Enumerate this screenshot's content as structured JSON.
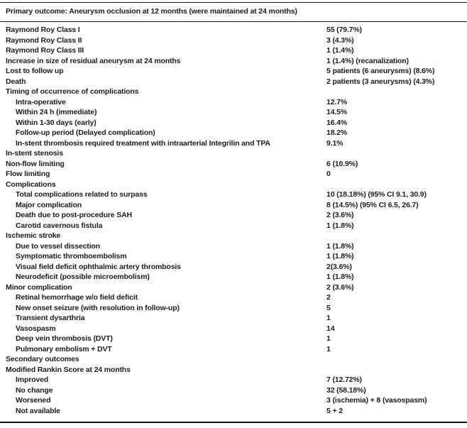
{
  "colors": {
    "text": "#1d1c1c",
    "rule": "#141414",
    "background": "#ffffff"
  },
  "table": {
    "header": "Primary outcome: Aneurysm occlusion at 12 months (were maintained at 24 months)",
    "rows": [
      {
        "label": "Raymond Roy Class I",
        "value": "55 (79.7%)",
        "indent": false
      },
      {
        "label": "Raymond Roy Class II",
        "value": "3 (4.3%)",
        "indent": false
      },
      {
        "label": "Raymond Roy Class III",
        "value": "1 (1.4%)",
        "indent": false
      },
      {
        "label": "Increase in size of residual aneurysm at 24 months",
        "value": "1 (1.4%) (recanalization)",
        "indent": false
      },
      {
        "label": "Lost to follow up",
        "value": "5 patients (6 aneurysms) (8.6%)",
        "indent": false
      },
      {
        "label": "Death",
        "value": "2 patients (3 aneurysms) (4.3%)",
        "indent": false
      },
      {
        "label": "Timing of occurrence of complications",
        "value": "",
        "indent": false
      },
      {
        "label": "Intra-operative",
        "value": "12.7%",
        "indent": true
      },
      {
        "label": "Within 24 h (immediate)",
        "value": "14.5%",
        "indent": true
      },
      {
        "label": "Within 1-30 days (early)",
        "value": "16.4%",
        "indent": true
      },
      {
        "label": "Follow-up period (Delayed complication)",
        "value": "18.2%",
        "indent": true
      },
      {
        "label": "In-stent thrombosis required treatment with intraarterial Integrilin and TPA",
        "value": "9.1%",
        "indent": true
      },
      {
        "label": "In-stent stenosis",
        "value": "",
        "indent": false
      },
      {
        "label": "Non-flow limiting",
        "value": "6 (10.9%)",
        "indent": false
      },
      {
        "label": "Flow limiting",
        "value": "0",
        "indent": false
      },
      {
        "label": "Complications",
        "value": "",
        "indent": false
      },
      {
        "label": "Total complications related to surpass",
        "value": "10 (18.18%) (95% CI 9.1, 30.9)",
        "indent": true
      },
      {
        "label": "Major complication",
        "value": "8 (14.5%) (95% CI 6.5, 26.7)",
        "indent": true
      },
      {
        "label": "Death due to post-procedure SAH",
        "value": "2 (3.6%)",
        "indent": true
      },
      {
        "label": "Carotid cavernous fistula",
        "value": "1 (1.8%)",
        "indent": true
      },
      {
        "label": "Ischemic stroke",
        "value": "",
        "indent": false
      },
      {
        "label": "Due to vessel dissection",
        "value": "1 (1.8%)",
        "indent": true
      },
      {
        "label": "Symptomatic thromboembolism",
        "value": "1 (1.8%)",
        "indent": true
      },
      {
        "label": "Visual field deficit ophthalmic artery thrombosis",
        "value": "2(3.6%)",
        "indent": true
      },
      {
        "label": "Neurodeficit (possible microembolism)",
        "value": "1 (1.8%)",
        "indent": true
      },
      {
        "label": "Minor complication",
        "value": "2 (3.6%)",
        "indent": false
      },
      {
        "label": "Retinal hemorrhage w/o field deficit",
        "value": "2",
        "indent": true
      },
      {
        "label": "New onset seizure (with resolution in follow-up)",
        "value": "5",
        "indent": true
      },
      {
        "label": "Transient dysarthria",
        "value": "1",
        "indent": true
      },
      {
        "label": "Vasospasm",
        "value": "14",
        "indent": true
      },
      {
        "label": "Deep vein thrombosis (DVT)",
        "value": "1",
        "indent": true
      },
      {
        "label": "Pulmonary embolism + DVT",
        "value": "1",
        "indent": true
      },
      {
        "label": "Secondary outcomes",
        "value": "",
        "indent": false
      },
      {
        "label": "Modified Rankin Score at 24 months",
        "value": "",
        "indent": false
      },
      {
        "label": "Improved",
        "value": "7 (12.72%)",
        "indent": true
      },
      {
        "label": "No change",
        "value": "32 (58.18%)",
        "indent": true
      },
      {
        "label": "Worsened",
        "value": "3 (ischemia) + 8 (vasospasm)",
        "indent": true
      },
      {
        "label": "Not available",
        "value": "5 + 2",
        "indent": true
      }
    ]
  }
}
